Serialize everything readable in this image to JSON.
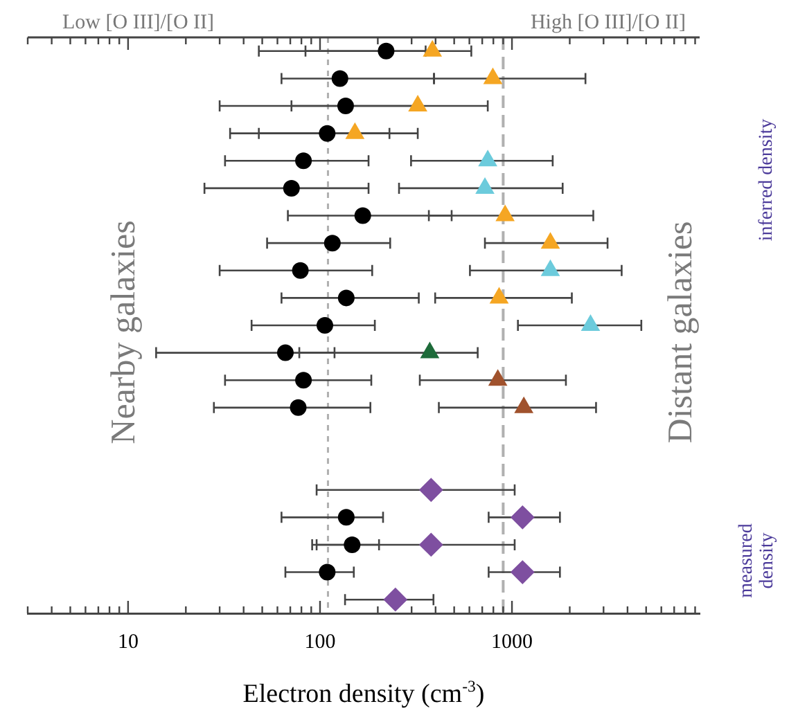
{
  "chart_data": {
    "type": "scatter",
    "orientation": "horizontal",
    "xlabel": "Electron density (cm$^{-3}$)",
    "annotations": [
      "Low [O III]/[O II]",
      "High [O III]/[O II]",
      "Nearby galaxies",
      "Distant galaxies",
      "inferred density",
      "measured density"
    ],
    "categories": [
      null,
      null,
      null,
      null,
      null,
      null,
      null,
      null,
      null,
      null,
      null,
      null,
      null,
      null,
      null,
      null,
      null,
      null,
      null,
      null,
      null
    ],
    "log": "x",
    "xlim": [
      3,
      9500
    ],
    "xticks": [
      {
        "value": 3,
        "label": null
      },
      {
        "value": 4,
        "label": null
      },
      {
        "value": 5,
        "label": null
      },
      {
        "value": 6,
        "label": null
      },
      {
        "value": 7,
        "label": null
      },
      {
        "value": 8,
        "label": null
      },
      {
        "value": 9,
        "label": null
      },
      10,
      {
        "value": 20,
        "label": null
      },
      {
        "value": 30,
        "label": null
      },
      {
        "value": 40,
        "label": null
      },
      {
        "value": 50,
        "label": null
      },
      {
        "value": 60,
        "label": null
      },
      {
        "value": 70,
        "label": null
      },
      {
        "value": 80,
        "label": null
      },
      {
        "value": 90,
        "label": null
      },
      100,
      {
        "value": 200,
        "label": null
      },
      {
        "value": 300,
        "label": null
      },
      {
        "value": 400,
        "label": null
      },
      {
        "value": 500,
        "label": null
      },
      {
        "value": 600,
        "label": null
      },
      {
        "value": 700,
        "label": null
      },
      {
        "value": 800,
        "label": null
      },
      {
        "value": 900,
        "label": null
      },
      1000,
      {
        "value": 2000,
        "label": null
      },
      {
        "value": 3000,
        "label": null
      },
      {
        "value": 4000,
        "label": null
      },
      {
        "value": 5000,
        "label": null
      },
      {
        "value": 6000,
        "label": null
      },
      {
        "value": 7000,
        "label": null
      },
      {
        "value": 8000,
        "label": null
      },
      {
        "value": 9000,
        "label": null
      }
    ],
    "tick_labels": "x",
    "grid": false,
    "legend": false,
    "ref_lines": [
      {
        "axis": "x",
        "value": 110,
        "color": "#b0b0b0",
        "line_style": "dashed"
      },
      {
        "axis": "x",
        "value": 900,
        "color": "#b0b0b0",
        "line_style": "dashed"
      }
    ],
    "series": [
      {
        "color": "#000000",
        "marker": "circle",
        "values": [
          221,
          127,
          136,
          109,
          82,
          71,
          167,
          116,
          79,
          137,
          106,
          66,
          82,
          77,
          null,
          null,
          null,
          137,
          147,
          109,
          null
        ],
        "errors": [
          [
            48,
            355
          ],
          [
            63,
            392
          ],
          [
            30,
            315
          ],
          [
            34,
            230
          ],
          [
            32,
            179
          ],
          [
            25,
            179
          ],
          [
            68,
            485
          ],
          [
            53,
            232
          ],
          [
            30,
            187
          ],
          [
            63,
            327
          ],
          [
            44,
            193
          ],
          [
            14,
            119
          ],
          [
            32,
            185
          ],
          [
            28,
            183
          ],
          null,
          null,
          null,
          [
            63,
            213
          ],
          [
            91,
            203
          ],
          [
            66,
            150
          ],
          null
        ]
      },
      {
        "color": "#f5a623",
        "marker": "triangle",
        "values": [
          385,
          795,
          323,
          152,
          null,
          null,
          921,
          1585,
          null,
          857,
          null,
          null,
          null,
          null,
          null,
          null,
          null,
          null,
          null,
          null,
          null
        ],
        "errors": [
          [
            84,
            614
          ],
          [
            393,
            2415
          ],
          [
            71,
            748
          ],
          [
            48,
            323
          ],
          null,
          null,
          [
            369,
            2653
          ],
          [
            723,
            3148
          ],
          null,
          [
            398,
            2051
          ],
          null,
          null,
          null,
          null,
          null,
          null,
          null,
          null,
          null,
          null,
          null
        ]
      },
      {
        "color": "#6ccbdc",
        "marker": "triangle",
        "values": [
          null,
          null,
          null,
          null,
          748,
          723,
          null,
          null,
          1585,
          null,
          2566,
          null,
          null,
          null,
          null,
          null,
          null,
          null,
          null,
          null,
          null
        ],
        "errors": [
          null,
          null,
          null,
          null,
          [
            298,
            1630
          ],
          [
            258,
            1837
          ],
          null,
          null,
          [
            604,
            3728
          ],
          null,
          [
            1074,
            4720
          ],
          null,
          null,
          null,
          null,
          null,
          null,
          null,
          null,
          null,
          null
        ]
      },
      {
        "color": "#1e6b3a",
        "marker": "triangle",
        "values": [
          null,
          null,
          null,
          null,
          null,
          null,
          null,
          null,
          null,
          null,
          null,
          373,
          null,
          null,
          null,
          null,
          null,
          null,
          null,
          null,
          null
        ],
        "errors": [
          null,
          null,
          null,
          null,
          null,
          null,
          null,
          null,
          null,
          null,
          null,
          [
            78,
            663
          ],
          null,
          null,
          null,
          null,
          null,
          null,
          null,
          null,
          null
        ]
      },
      {
        "color": "#a0522d",
        "marker": "triangle",
        "values": [
          null,
          null,
          null,
          null,
          null,
          null,
          null,
          null,
          null,
          null,
          null,
          null,
          844,
          1153,
          null,
          null,
          null,
          null,
          null,
          null,
          null
        ],
        "errors": [
          null,
          null,
          null,
          null,
          null,
          null,
          null,
          null,
          null,
          null,
          null,
          null,
          [
            331,
            1910
          ],
          [
            416,
            2742
          ],
          null,
          null,
          null,
          null,
          null,
          null,
          null
        ]
      },
      {
        "color": "#7e4fa0",
        "marker": "diamond",
        "values": [
          null,
          null,
          null,
          null,
          null,
          null,
          null,
          null,
          null,
          null,
          null,
          null,
          null,
          null,
          null,
          null,
          379,
          1135,
          379,
          1135,
          247
        ],
        "errors": [
          null,
          null,
          null,
          null,
          null,
          null,
          null,
          null,
          null,
          null,
          null,
          null,
          null,
          null,
          null,
          null,
          [
            96,
            1033
          ],
          [
            756,
            1778
          ],
          [
            96,
            1033
          ],
          [
            756,
            1778
          ],
          [
            135,
            390
          ]
        ]
      }
    ]
  }
}
